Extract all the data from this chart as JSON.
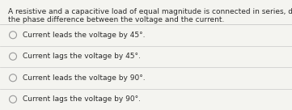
{
  "question_line1": "A resistive and a capacitive load of equal magnitude is connected in series, determine",
  "question_line2": "the phase difference between the voltage and the current.",
  "options": [
    "Current leads the voltage by 45°.",
    "Current lags the voltage by 45°.",
    "Current leads the voltage by 90°.",
    "Current lags the voltage by 90°."
  ],
  "bg_color": "#f4f4f0",
  "text_color": "#2a2a2a",
  "line_color": "#c8c8c8",
  "circle_edge_color": "#999999",
  "question_fontsize": 6.5,
  "option_fontsize": 6.5,
  "fig_width": 3.61,
  "fig_height": 1.36,
  "dpi": 100
}
